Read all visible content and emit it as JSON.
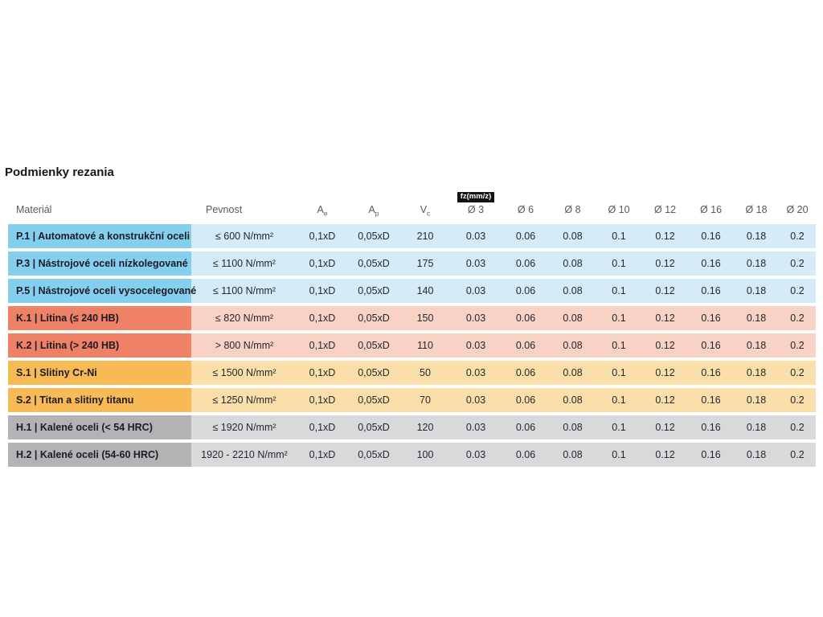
{
  "page": {
    "title": "Podmienky rezania"
  },
  "table": {
    "headers": {
      "material": "Materiál",
      "pevnost": "Pevnost",
      "ae": {
        "base": "A",
        "sub": "e"
      },
      "ap": {
        "base": "A",
        "sub": "p"
      },
      "vc": {
        "base": "V",
        "sub": "c"
      },
      "fz_badge": "fz(mm/z)",
      "diameters": [
        "Ø 3",
        "Ø 6",
        "Ø 8",
        "Ø 10",
        "Ø 12",
        "Ø 16",
        "Ø 18",
        "Ø 20"
      ]
    },
    "group_colors": {
      "P": {
        "label": "#84CFEE",
        "row": "#D5EBF8"
      },
      "K": {
        "label": "#EF8166",
        "row": "#F8D2C5"
      },
      "S": {
        "label": "#F8BA55",
        "row": "#FBDFAA"
      },
      "H": {
        "label": "#B3B3B5",
        "row": "#D9D9DB"
      }
    },
    "rows": [
      {
        "group": "P",
        "material": "P.1 | Automatové a konstrukční oceli",
        "pevnost": "≤ 600 N/mm²",
        "ae": "0,1xD",
        "ap": "0,05xD",
        "vc": "210",
        "fz": [
          "0.03",
          "0.06",
          "0.08",
          "0.1",
          "0.12",
          "0.16",
          "0.18",
          "0.2"
        ]
      },
      {
        "group": "P",
        "material": "P.3 | Nástrojové oceli nízkolegované",
        "pevnost": "≤ 1100 N/mm²",
        "ae": "0,1xD",
        "ap": "0,05xD",
        "vc": "175",
        "fz": [
          "0.03",
          "0.06",
          "0.08",
          "0.1",
          "0.12",
          "0.16",
          "0.18",
          "0.2"
        ]
      },
      {
        "group": "P",
        "material": "P.5 | Nástrojové oceli vysocelegované",
        "pevnost": "≤ 1100 N/mm²",
        "ae": "0,1xD",
        "ap": "0,05xD",
        "vc": "140",
        "fz": [
          "0.03",
          "0.06",
          "0.08",
          "0.1",
          "0.12",
          "0.16",
          "0.18",
          "0.2"
        ]
      },
      {
        "group": "K",
        "material": "K.1 | Litina (≤ 240 HB)",
        "pevnost": "≤ 820 N/mm²",
        "ae": "0,1xD",
        "ap": "0,05xD",
        "vc": "150",
        "fz": [
          "0.03",
          "0.06",
          "0.08",
          "0.1",
          "0.12",
          "0.16",
          "0.18",
          "0.2"
        ]
      },
      {
        "group": "K",
        "material": "K.2 | Litina (> 240 HB)",
        "pevnost": "> 800 N/mm²",
        "ae": "0,1xD",
        "ap": "0,05xD",
        "vc": "110",
        "fz": [
          "0.03",
          "0.06",
          "0.08",
          "0.1",
          "0.12",
          "0.16",
          "0.18",
          "0.2"
        ]
      },
      {
        "group": "S",
        "material": "S.1 | Slitiny Cr-Ni",
        "pevnost": "≤ 1500 N/mm²",
        "ae": "0,1xD",
        "ap": "0,05xD",
        "vc": "50",
        "fz": [
          "0.03",
          "0.06",
          "0.08",
          "0.1",
          "0.12",
          "0.16",
          "0.18",
          "0.2"
        ]
      },
      {
        "group": "S",
        "material": "S.2 | Titan a slitiny titanu",
        "pevnost": "≤ 1250 N/mm²",
        "ae": "0,1xD",
        "ap": "0,05xD",
        "vc": "70",
        "fz": [
          "0.03",
          "0.06",
          "0.08",
          "0.1",
          "0.12",
          "0.16",
          "0.18",
          "0.2"
        ]
      },
      {
        "group": "H",
        "material": "H.1 | Kalené oceli (< 54 HRC)",
        "pevnost": "≤ 1920 N/mm²",
        "ae": "0,1xD",
        "ap": "0,05xD",
        "vc": "120",
        "fz": [
          "0.03",
          "0.06",
          "0.08",
          "0.1",
          "0.12",
          "0.16",
          "0.18",
          "0.2"
        ]
      },
      {
        "group": "H",
        "material": "H.2 | Kalené oceli (54-60 HRC)",
        "pevnost": "1920 - 2210 N/mm²",
        "ae": "0,1xD",
        "ap": "0,05xD",
        "vc": "100",
        "fz": [
          "0.03",
          "0.06",
          "0.08",
          "0.1",
          "0.12",
          "0.16",
          "0.18",
          "0.2"
        ]
      }
    ]
  }
}
